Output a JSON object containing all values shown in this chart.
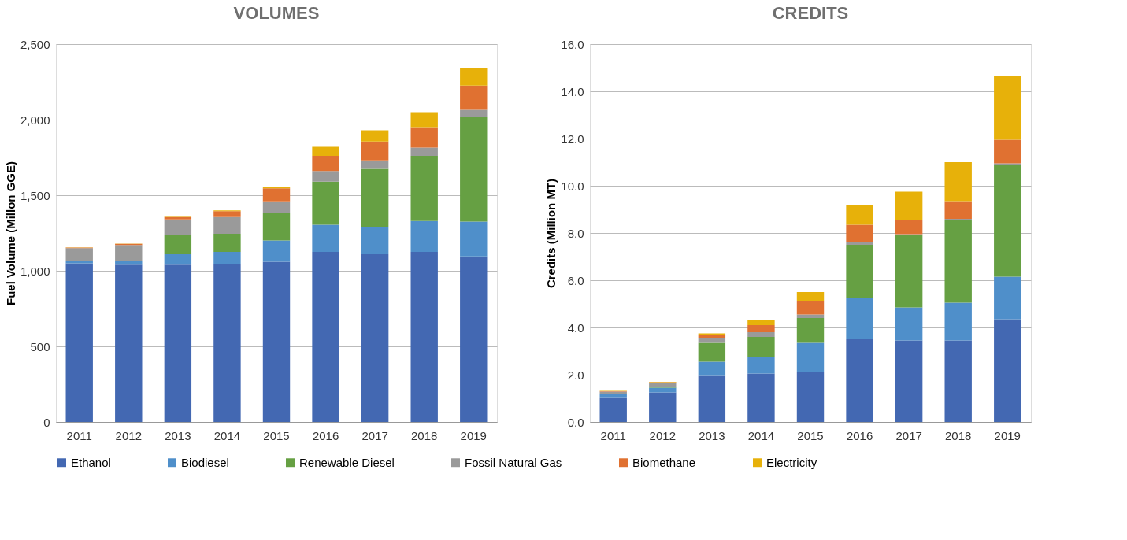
{
  "chart_data": [
    {
      "type": "bar",
      "stacked": true,
      "title": "VOLUMES",
      "ylabel": "Fuel Volume (Millon GGE)",
      "categories": [
        "2011",
        "2012",
        "2013",
        "2014",
        "2015",
        "2016",
        "2017",
        "2018",
        "2019"
      ],
      "series": [
        {
          "name": "Ethanol",
          "color": "#4368b2",
          "values": [
            1050,
            1040,
            1040,
            1045,
            1060,
            1125,
            1110,
            1125,
            1095
          ]
        },
        {
          "name": "Biodiesel",
          "color": "#4f8fca",
          "values": [
            15,
            25,
            70,
            80,
            140,
            180,
            180,
            205,
            230
          ]
        },
        {
          "name": "Renewable Diesel",
          "color": "#66a043",
          "values": [
            0,
            0,
            130,
            120,
            180,
            285,
            385,
            430,
            695
          ]
        },
        {
          "name": "Fossil Natural Gas",
          "color": "#9a9a9a",
          "values": [
            85,
            105,
            100,
            110,
            80,
            70,
            55,
            55,
            45
          ]
        },
        {
          "name": "Biomethane",
          "color": "#e07131",
          "values": [
            3,
            8,
            15,
            40,
            85,
            100,
            125,
            135,
            160
          ]
        },
        {
          "name": "Electricity",
          "color": "#e7b10a",
          "values": [
            2,
            2,
            3,
            5,
            10,
            60,
            75,
            100,
            115
          ]
        }
      ],
      "ylim": [
        0,
        2500
      ],
      "yticks": [
        0,
        500,
        {
          "value": 1000,
          "label": "1,000"
        },
        {
          "value": 1500,
          "label": "1,500"
        },
        {
          "value": 2000,
          "label": "2,000"
        },
        {
          "value": 2500,
          "label": "2,500"
        }
      ],
      "grid": "y",
      "legend": "bottom"
    },
    {
      "type": "bar",
      "stacked": true,
      "title": "CREDITS",
      "ylabel": "Credits (Million  MT)",
      "categories": [
        "2011",
        "2012",
        "2013",
        "2014",
        "2015",
        "2016",
        "2017",
        "2018",
        "2019"
      ],
      "series": [
        {
          "name": "Ethanol",
          "color": "#4368b2",
          "values": [
            1.05,
            1.25,
            1.95,
            2.05,
            2.1,
            3.5,
            3.45,
            3.45,
            4.35
          ]
        },
        {
          "name": "Biodiesel",
          "color": "#4f8fca",
          "values": [
            0.15,
            0.2,
            0.6,
            0.7,
            1.25,
            1.75,
            1.4,
            1.6,
            1.8
          ]
        },
        {
          "name": "Renewable Diesel",
          "color": "#66a043",
          "values": [
            0,
            0.05,
            0.8,
            0.85,
            1.05,
            2.25,
            3.05,
            3.5,
            4.75
          ]
        },
        {
          "name": "Fossil Natural Gas",
          "color": "#9a9a9a",
          "values": [
            0.08,
            0.15,
            0.2,
            0.2,
            0.15,
            0.1,
            0.05,
            0.05,
            0.05
          ]
        },
        {
          "name": "Biomethane",
          "color": "#e07131",
          "values": [
            0.02,
            0.03,
            0.15,
            0.3,
            0.55,
            0.75,
            0.6,
            0.75,
            1.0
          ]
        },
        {
          "name": "Electricity",
          "color": "#e7b10a",
          "values": [
            0.02,
            0.02,
            0.05,
            0.2,
            0.4,
            0.85,
            1.2,
            1.65,
            2.7
          ]
        }
      ],
      "ylim": [
        0,
        16
      ],
      "yticks": [
        {
          "value": 0,
          "label": "0.0"
        },
        {
          "value": 2,
          "label": "2.0"
        },
        {
          "value": 4,
          "label": "4.0"
        },
        {
          "value": 6,
          "label": "6.0"
        },
        {
          "value": 8,
          "label": "8.0"
        },
        {
          "value": 10,
          "label": "10.0"
        },
        {
          "value": 12,
          "label": "12.0"
        },
        {
          "value": 14,
          "label": "14.0"
        },
        {
          "value": 16,
          "label": "16.0"
        }
      ],
      "grid": "y",
      "legend": "bottom"
    }
  ]
}
